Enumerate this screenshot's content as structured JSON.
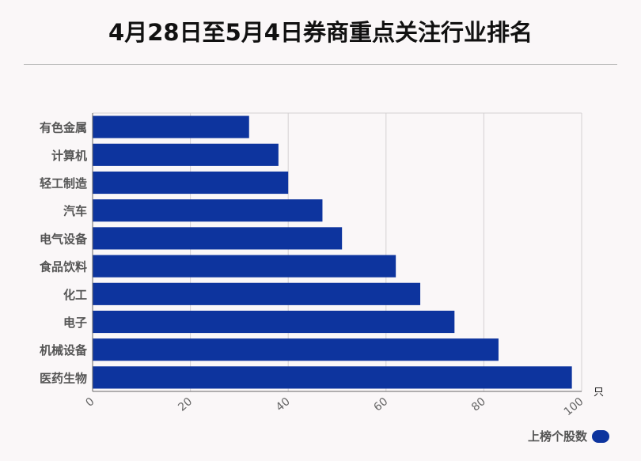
{
  "chart_data": {
    "type": "bar",
    "orientation": "horizontal",
    "title": "4月28日至5月4日券商重点关注行业排名",
    "categories": [
      "有色金属",
      "计算机",
      "轻工制造",
      "汽车",
      "电气设备",
      "食品饮料",
      "化工",
      "电子",
      "机械设备",
      "医药生物"
    ],
    "series": [
      {
        "name": "上榜个股数",
        "values": [
          32,
          38,
          40,
          47,
          51,
          62,
          67,
          74,
          83,
          98
        ],
        "color": "#0d349e"
      }
    ],
    "x_unit": "只",
    "xlim": [
      0,
      100
    ],
    "x_ticks": [
      0,
      20,
      40,
      60,
      80,
      100
    ],
    "grid": true,
    "legend_position": "bottom-right"
  }
}
